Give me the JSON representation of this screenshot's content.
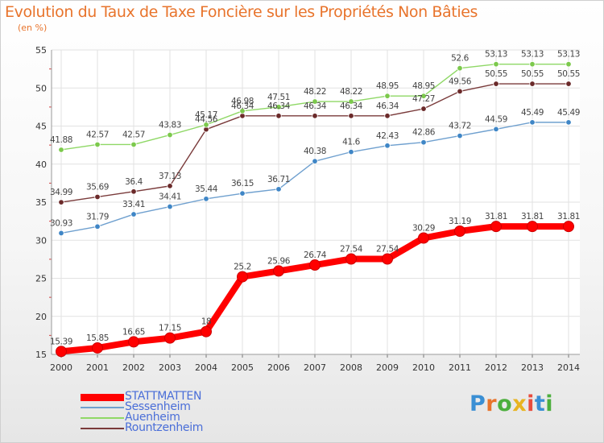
{
  "title": "Evolution du Taux de Taxe Foncière sur les Propriétés Non Bâties",
  "subtitle": "(en %)",
  "logo": {
    "letters": [
      "P",
      "r",
      "o",
      "x",
      "i",
      "t",
      "i"
    ],
    "colors": [
      "#3a8fd4",
      "#e8742c",
      "#4caf3d",
      "#e8b421",
      "#e84c3d",
      "#3a8fd4",
      "#4caf3d"
    ]
  },
  "chart_data": {
    "type": "line",
    "title": "Evolution du Taux de Taxe Foncière sur les Propriétés Non Bâties",
    "ylabel": "(en %)",
    "ylim": [
      15,
      55
    ],
    "yticks": [
      15,
      20,
      25,
      30,
      35,
      40,
      45,
      50,
      55
    ],
    "grid": true,
    "legend": "bottom-left",
    "x": [
      2000,
      2001,
      2002,
      2003,
      2004,
      2005,
      2006,
      2007,
      2008,
      2009,
      2010,
      2011,
      2012,
      2013,
      2014
    ],
    "series": [
      {
        "name": "STATTMATTEN",
        "color": "#ff0000",
        "values": [
          15.39,
          15.85,
          16.65,
          17.15,
          18,
          25.2,
          25.96,
          26.74,
          27.54,
          27.54,
          30.29,
          31.19,
          31.81,
          31.81,
          31.81
        ],
        "labels": [
          "15.39",
          "15.85",
          "16.65",
          "17.15",
          "18",
          "25.2",
          "25.96",
          "26.74",
          "27.54",
          "27.54",
          "30.29",
          "31.19",
          "31.81",
          "31.81",
          "31.81"
        ]
      },
      {
        "name": "Sessenheim",
        "color": "#6fa0cf",
        "marker": "#3f86c6",
        "values": [
          30.93,
          31.79,
          33.41,
          34.41,
          35.44,
          36.15,
          36.71,
          40.38,
          41.6,
          42.43,
          42.86,
          43.72,
          44.59,
          45.49,
          45.49
        ],
        "labels": [
          "30.93",
          "31.79",
          "33.41",
          "34.41",
          "35.44",
          "36.15",
          "36.71",
          "40.38",
          "41.6",
          "42.43",
          "42.86",
          "43.72",
          "44.59",
          "45.49",
          "45.49"
        ]
      },
      {
        "name": "Auenheim",
        "color": "#8fd866",
        "marker": "#7cc94c",
        "values": [
          41.88,
          42.57,
          42.57,
          43.83,
          45.17,
          46.98,
          47.51,
          48.22,
          48.22,
          48.95,
          48.95,
          52.6,
          53.13,
          53.13,
          53.13
        ],
        "labels": [
          "41.88",
          "42.57",
          "42.57",
          "43.83",
          "45.17",
          "46.98",
          "47.51",
          "48.22",
          "48.22",
          "48.95",
          "48.95",
          "52.6",
          "53.13",
          "53.13",
          "53.13"
        ]
      },
      {
        "name": "Rountzenheim",
        "color": "#7a3b3b",
        "marker": "#6b2a2a",
        "values": [
          34.99,
          35.69,
          36.4,
          37.13,
          44.56,
          46.34,
          46.34,
          46.34,
          46.34,
          46.34,
          47.27,
          49.56,
          50.55,
          50.55,
          50.55
        ],
        "labels": [
          "34.99",
          "35.69",
          "36.4",
          "37.13",
          "44.56",
          "46.34",
          "46.34",
          "46.34",
          "46.34",
          "46.34",
          "47.27",
          "49.56",
          "50.55",
          "50.55",
          "50.55"
        ]
      }
    ]
  }
}
